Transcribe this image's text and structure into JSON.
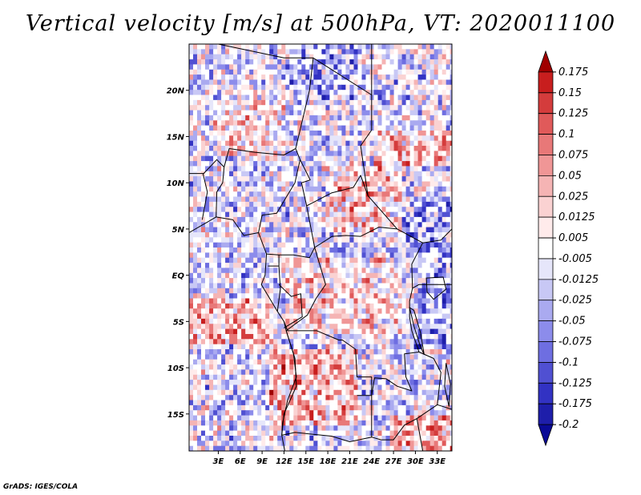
{
  "chart_data": {
    "type": "heatmap",
    "title": "Vertical velocity [m/s] at 500hPa, VT: 2020011100",
    "variable": "Vertical velocity",
    "units": "m/s",
    "level": "500hPa",
    "valid_time": "2020011100",
    "x_range_deg_east": [
      -1,
      35
    ],
    "y_range_deg_north": [
      -19,
      25
    ],
    "x_tick_values": [
      3,
      6,
      9,
      12,
      15,
      18,
      21,
      24,
      27,
      30,
      33
    ],
    "x_tick_labels": [
      "3E",
      "6E",
      "9E",
      "12E",
      "15E",
      "18E",
      "21E",
      "24E",
      "27E",
      "30E",
      "33E"
    ],
    "y_tick_values": [
      20,
      15,
      10,
      5,
      0,
      -5,
      -10,
      -15
    ],
    "y_tick_labels": [
      "20N",
      "15N",
      "10N",
      "5N",
      "EQ",
      "5S",
      "10S",
      "15S"
    ],
    "colorbar": {
      "levels": [
        "0.175",
        "0.15",
        "0.125",
        "0.1",
        "0.075",
        "0.05",
        "0.025",
        "0.0125",
        "0.005",
        "-0.005",
        "-0.0125",
        "-0.025",
        "-0.05",
        "-0.075",
        "-0.1",
        "-0.125",
        "-0.175",
        "-0.2"
      ],
      "colors": [
        "#a00000",
        "#c81e1e",
        "#d43c3c",
        "#e05a5a",
        "#e87878",
        "#f09696",
        "#f5b4b4",
        "#fad2d2",
        "#ffebeb",
        "#ffffff",
        "#e6e6fa",
        "#c8c8f5",
        "#aaaaf0",
        "#8c8ceb",
        "#6e6ee1",
        "#5050d2",
        "#3232c3",
        "#1e1eaa",
        "#0a0a96"
      ]
    },
    "notes": "Field alternates red (ascent) and blue (descent) patches over Central Africa; strongest red near equator/Congo basin and 10S-18S; blue broadly over Sahara and east."
  },
  "credit": "GrADS: IGES/COLA"
}
